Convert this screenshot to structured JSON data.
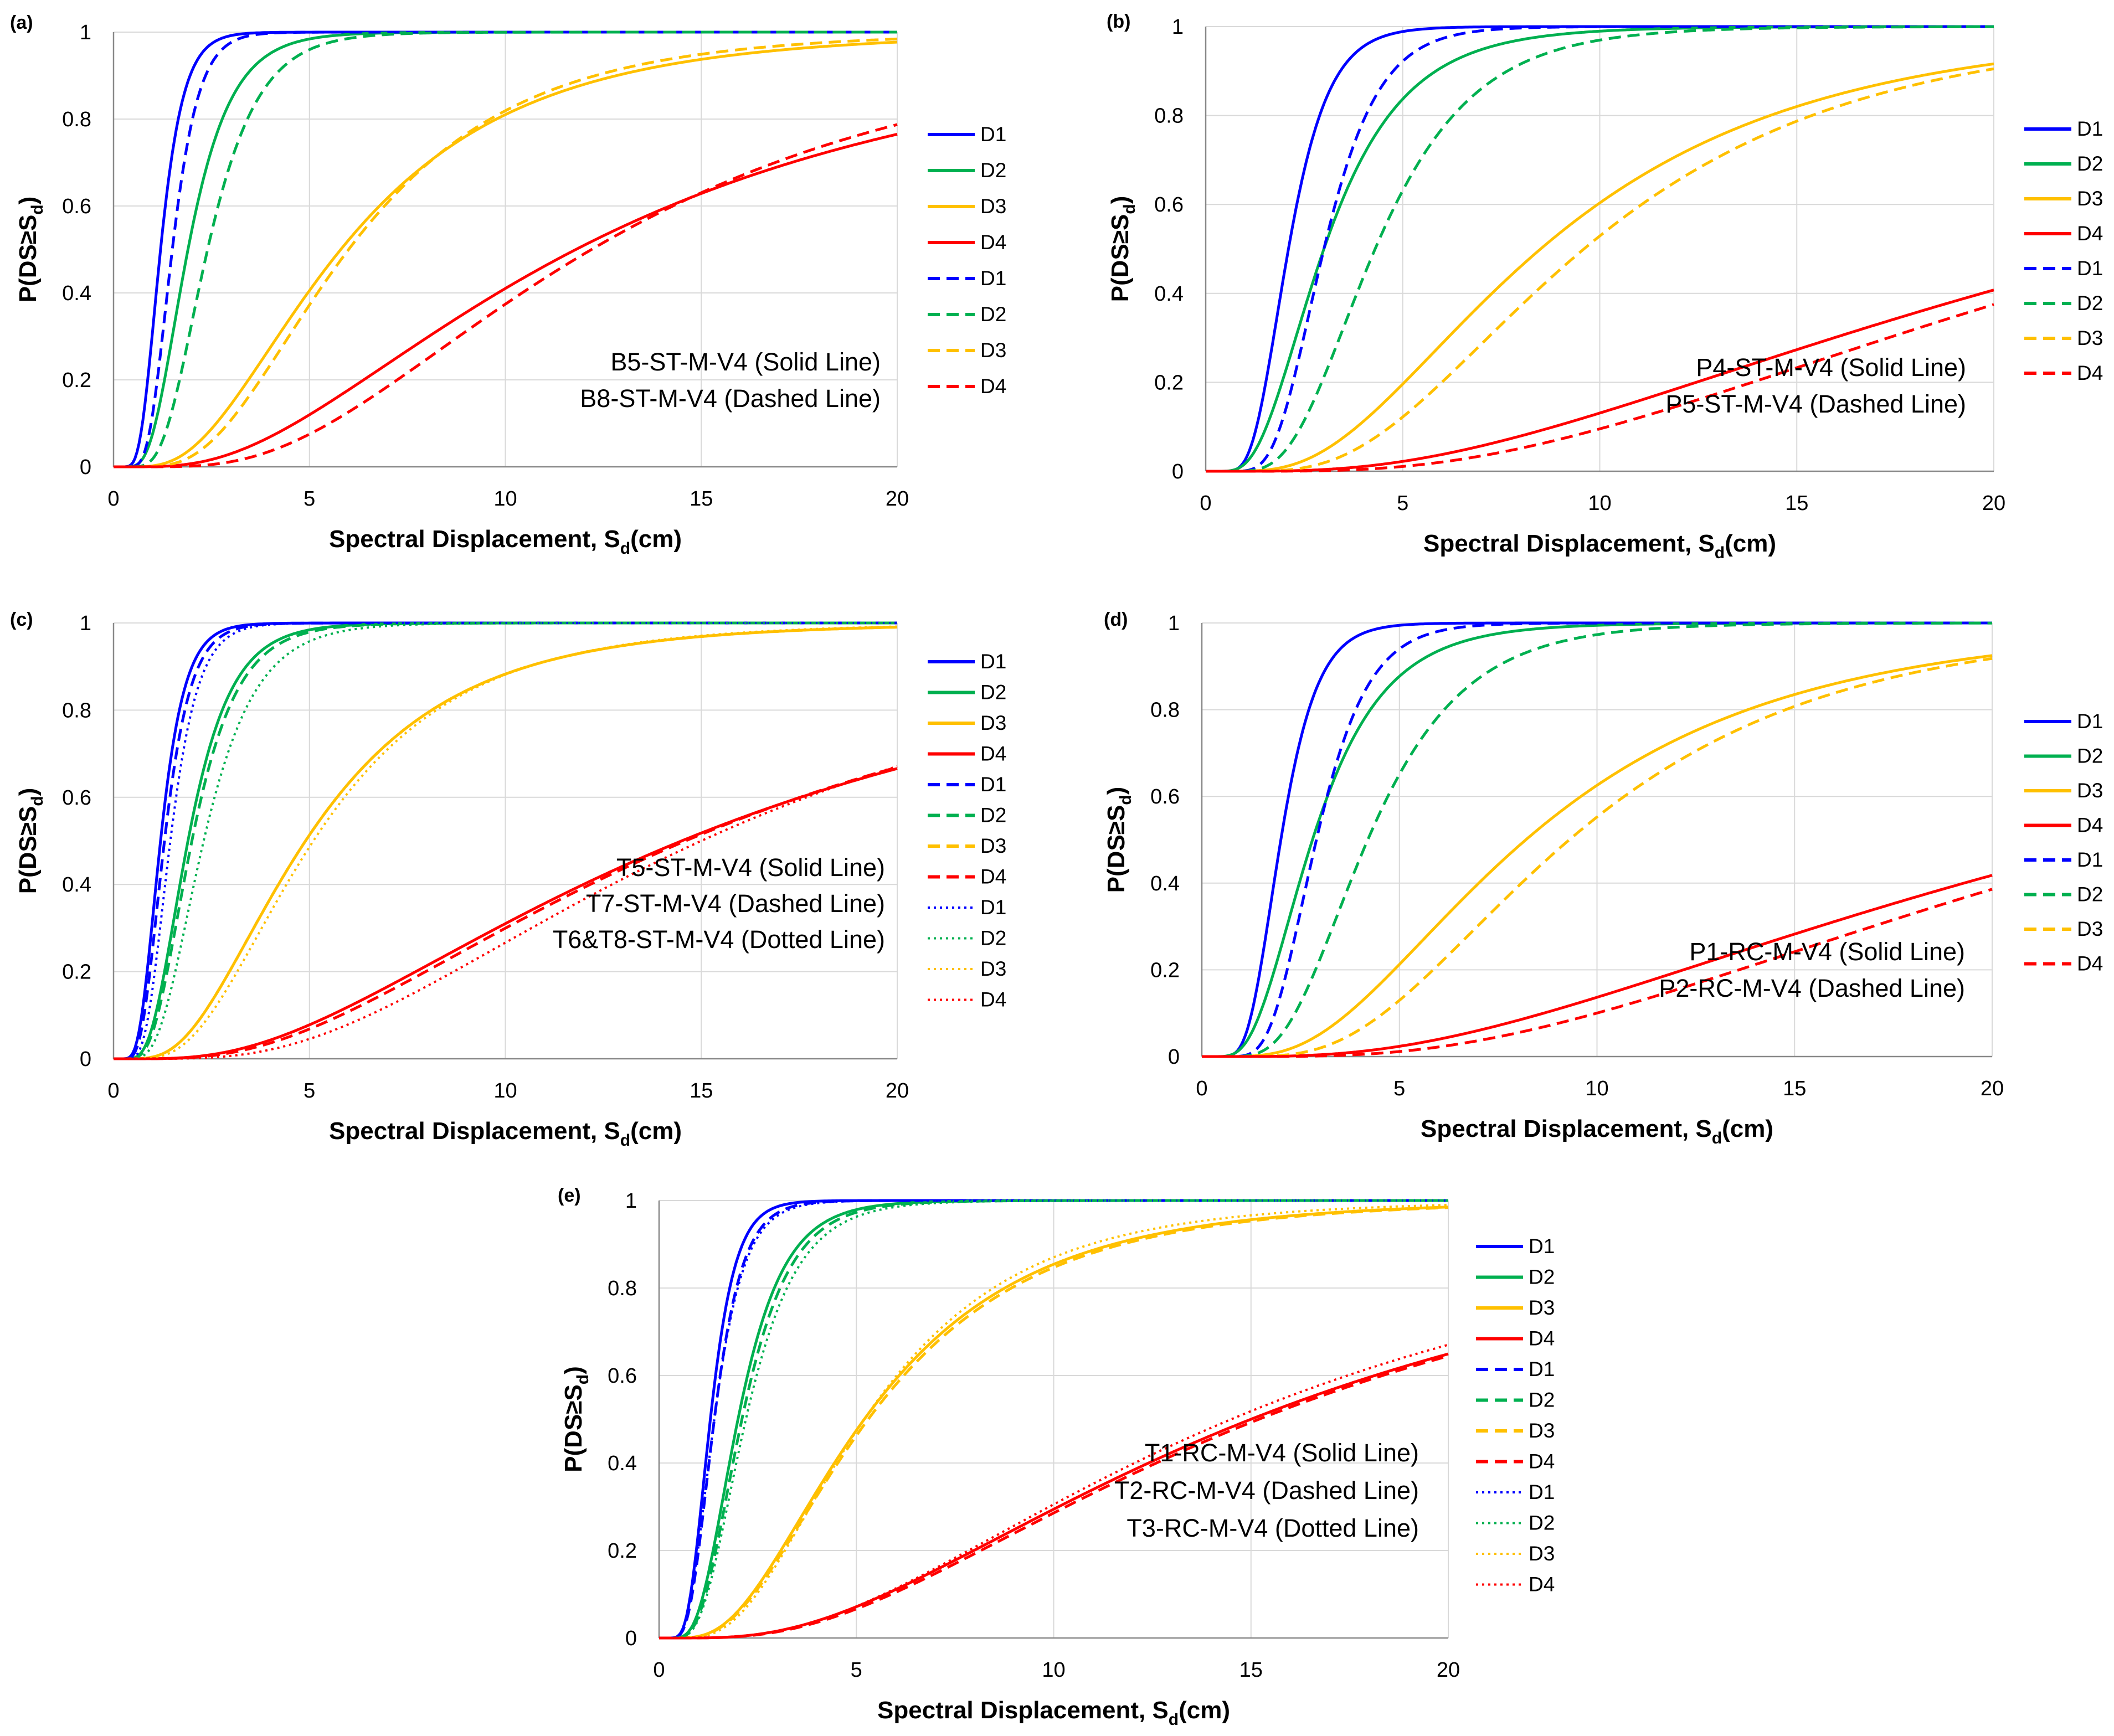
{
  "colors": {
    "D1": "#0000ff",
    "D2": "#00b050",
    "D3": "#ffc000",
    "D4": "#ff0000"
  },
  "chart_data": [
    {
      "type": "line",
      "label": "(a)",
      "xlabel": "Spectral Displacement, S",
      "xlabel_sub": "d",
      "xlabel_unit": "(cm)",
      "ylabel": "P(DS≥S",
      "ylabel_sub": "d",
      "ylabel_close": ")",
      "xlim": [
        0,
        20
      ],
      "ylim": [
        0,
        1
      ],
      "xticks": [
        "0",
        "5",
        "10",
        "15",
        "20"
      ],
      "yticks": [
        "0",
        "0.2",
        "0.4",
        "0.6",
        "0.8",
        "1"
      ],
      "notes": [
        "B5-ST-M-V4 (Solid Line)",
        "B8-ST-M-V4 (Dashed Line)"
      ],
      "legend": [
        "D1",
        "D2",
        "D3",
        "D4",
        "D1",
        "D2",
        "D3",
        "D4"
      ],
      "series": [
        {
          "name": "D1",
          "style": "solid",
          "median": 1.2,
          "beta": 0.38
        },
        {
          "name": "D2",
          "style": "solid",
          "median": 1.9,
          "beta": 0.45
        },
        {
          "name": "D3",
          "style": "solid",
          "median": 5.8,
          "beta": 0.62
        },
        {
          "name": "D4",
          "style": "solid",
          "median": 11.8,
          "beta": 0.73
        },
        {
          "name": "D1",
          "style": "dashed",
          "median": 1.5,
          "beta": 0.35
        },
        {
          "name": "D2",
          "style": "dashed",
          "median": 2.4,
          "beta": 0.42
        },
        {
          "name": "D3",
          "style": "dashed",
          "median": 6.0,
          "beta": 0.56
        },
        {
          "name": "D4",
          "style": "dashed",
          "median": 12.2,
          "beta": 0.62
        }
      ]
    },
    {
      "type": "line",
      "label": "(b)",
      "xlabel": "Spectral Displacement, S",
      "xlabel_sub": "d",
      "xlabel_unit": "(cm)",
      "ylabel": "P(DS≥S",
      "ylabel_sub": "d",
      "ylabel_close": ")",
      "xlim": [
        0,
        20
      ],
      "ylim": [
        0,
        1
      ],
      "xticks": [
        "0",
        "5",
        "10",
        "15",
        "20"
      ],
      "yticks": [
        "0",
        "0.2",
        "0.4",
        "0.6",
        "0.8",
        "1"
      ],
      "notes": [
        "P4-ST-M-V4 (Solid Line)",
        "P5-ST-M-V4 (Dashed Line)"
      ],
      "legend": [
        "D1",
        "D2",
        "D3",
        "D4",
        "D1",
        "D2",
        "D3",
        "D4"
      ],
      "series": [
        {
          "name": "D1",
          "style": "solid",
          "median": 2.1,
          "beta": 0.38
        },
        {
          "name": "D2",
          "style": "solid",
          "median": 3.0,
          "beta": 0.52
        },
        {
          "name": "D3",
          "style": "solid",
          "median": 8.5,
          "beta": 0.62
        },
        {
          "name": "D4",
          "style": "solid",
          "median": 24.0,
          "beta": 0.78
        },
        {
          "name": "D1",
          "style": "dashed",
          "median": 3.0,
          "beta": 0.36
        },
        {
          "name": "D2",
          "style": "dashed",
          "median": 4.3,
          "beta": 0.45
        },
        {
          "name": "D3",
          "style": "dashed",
          "median": 9.6,
          "beta": 0.56
        },
        {
          "name": "D4",
          "style": "dashed",
          "median": 25.0,
          "beta": 0.7
        }
      ]
    },
    {
      "type": "line",
      "label": "(c)",
      "xlabel": "Spectral Displacement, S",
      "xlabel_sub": "d",
      "xlabel_unit": "(cm)",
      "ylabel": "P(DS≥S",
      "ylabel_sub": "d",
      "ylabel_close": ")",
      "xlim": [
        0,
        20
      ],
      "ylim": [
        0,
        1
      ],
      "xticks": [
        "0",
        "5",
        "10",
        "15",
        "20"
      ],
      "yticks": [
        "0",
        "0.2",
        "0.4",
        "0.6",
        "0.8",
        "1"
      ],
      "notes": [
        "T5-ST-M-V4 (Solid Line)",
        "T7-ST-M-V4 (Dashed Line)",
        "T6&T8-ST-M-V4 (Dotted Line)"
      ],
      "legend": [
        "D1",
        "D2",
        "D3",
        "D4",
        "D1",
        "D2",
        "D3",
        "D4",
        "D1",
        "D2",
        "D3",
        "D4"
      ],
      "series": [
        {
          "name": "D1",
          "style": "solid",
          "median": 1.2,
          "beta": 0.4
        },
        {
          "name": "D2",
          "style": "solid",
          "median": 1.9,
          "beta": 0.45
        },
        {
          "name": "D3",
          "style": "solid",
          "median": 4.9,
          "beta": 0.6
        },
        {
          "name": "D4",
          "style": "solid",
          "median": 14.5,
          "beta": 0.75
        },
        {
          "name": "D1",
          "style": "dashed",
          "median": 1.3,
          "beta": 0.4
        },
        {
          "name": "D2",
          "style": "dashed",
          "median": 2.0,
          "beta": 0.45
        },
        {
          "name": "D3",
          "style": "dashed",
          "median": 4.9,
          "beta": 0.6
        },
        {
          "name": "D4",
          "style": "dashed",
          "median": 14.6,
          "beta": 0.72
        },
        {
          "name": "D1",
          "style": "dotted",
          "median": 1.45,
          "beta": 0.38
        },
        {
          "name": "D2",
          "style": "dotted",
          "median": 2.3,
          "beta": 0.45
        },
        {
          "name": "D3",
          "style": "dotted",
          "median": 5.1,
          "beta": 0.57
        },
        {
          "name": "D4",
          "style": "dotted",
          "median": 15.0,
          "beta": 0.65
        }
      ]
    },
    {
      "type": "line",
      "label": "(d)",
      "xlabel": "Spectral Displacement, S",
      "xlabel_sub": "d",
      "xlabel_unit": "(cm)",
      "ylabel": "P(DS≥S",
      "ylabel_sub": "d",
      "ylabel_close": ")",
      "xlim": [
        0,
        20
      ],
      "ylim": [
        0,
        1
      ],
      "xticks": [
        "0",
        "5",
        "10",
        "15",
        "20"
      ],
      "yticks": [
        "0",
        "0.2",
        "0.4",
        "0.6",
        "0.8",
        "1"
      ],
      "notes": [
        "P1-RC-M-V4 (Solid Line)",
        "P2-RC-M-V4 (Dashed Line)"
      ],
      "legend": [
        "D1",
        "D2",
        "D3",
        "D4",
        "D1",
        "D2",
        "D3",
        "D4"
      ],
      "series": [
        {
          "name": "D1",
          "style": "solid",
          "median": 2.0,
          "beta": 0.36
        },
        {
          "name": "D2",
          "style": "solid",
          "median": 2.8,
          "beta": 0.5
        },
        {
          "name": "D3",
          "style": "solid",
          "median": 8.2,
          "beta": 0.62
        },
        {
          "name": "D4",
          "style": "solid",
          "median": 23.5,
          "beta": 0.78
        },
        {
          "name": "D1",
          "style": "dashed",
          "median": 2.9,
          "beta": 0.35
        },
        {
          "name": "D2",
          "style": "dashed",
          "median": 4.2,
          "beta": 0.45
        },
        {
          "name": "D3",
          "style": "dashed",
          "median": 9.3,
          "beta": 0.55
        },
        {
          "name": "D4",
          "style": "dashed",
          "median": 24.5,
          "beta": 0.7
        }
      ]
    },
    {
      "type": "line",
      "label": "(e)",
      "xlabel": "Spectral Displacement, S",
      "xlabel_sub": "d",
      "xlabel_unit": "(cm)",
      "ylabel": "P(DS≥S",
      "ylabel_sub": "d",
      "ylabel_close": ")",
      "xlim": [
        0,
        20
      ],
      "ylim": [
        0,
        1
      ],
      "xticks": [
        "0",
        "5",
        "10",
        "15",
        "20"
      ],
      "yticks": [
        "0",
        "0.2",
        "0.4",
        "0.6",
        "0.8",
        "1"
      ],
      "notes": [
        "T1-RC-M-V4 (Solid Line)",
        "T2-RC-M-V4 (Dashed Line)",
        "T3-RC-M-V4 (Dotted Line)"
      ],
      "legend": [
        "D1",
        "D2",
        "D3",
        "D4",
        "D1",
        "D2",
        "D3",
        "D4",
        "D1",
        "D2",
        "D3",
        "D4"
      ],
      "series": [
        {
          "name": "D1",
          "style": "solid",
          "median": 1.3,
          "beta": 0.38
        },
        {
          "name": "D2",
          "style": "solid",
          "median": 2.0,
          "beta": 0.45
        },
        {
          "name": "D3",
          "style": "solid",
          "median": 5.2,
          "beta": 0.62
        },
        {
          "name": "D4",
          "style": "solid",
          "median": 15.0,
          "beta": 0.75
        },
        {
          "name": "D1",
          "style": "dashed",
          "median": 1.4,
          "beta": 0.4
        },
        {
          "name": "D2",
          "style": "dashed",
          "median": 2.1,
          "beta": 0.45
        },
        {
          "name": "D3",
          "style": "dashed",
          "median": 5.3,
          "beta": 0.62
        },
        {
          "name": "D4",
          "style": "dashed",
          "median": 15.2,
          "beta": 0.74
        },
        {
          "name": "D1",
          "style": "dotted",
          "median": 1.4,
          "beta": 0.42
        },
        {
          "name": "D2",
          "style": "dotted",
          "median": 2.2,
          "beta": 0.46
        },
        {
          "name": "D3",
          "style": "dotted",
          "median": 5.2,
          "beta": 0.58
        },
        {
          "name": "D4",
          "style": "dotted",
          "median": 14.5,
          "beta": 0.73
        }
      ]
    }
  ]
}
